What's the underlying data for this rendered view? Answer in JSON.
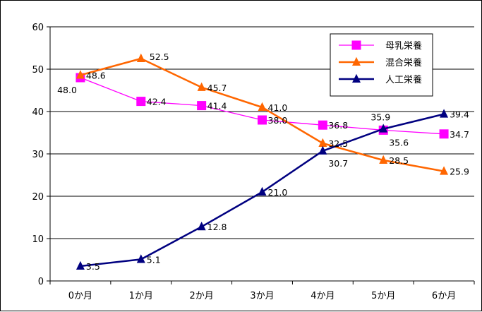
{
  "chart_data": {
    "type": "line",
    "title": "",
    "xlabel": "",
    "ylabel": "",
    "categories": [
      "0か月",
      "1か月",
      "2か月",
      "3か月",
      "4か月",
      "5か月",
      "6か月"
    ],
    "ylim": [
      0,
      60
    ],
    "yticks": [
      0,
      10,
      20,
      30,
      40,
      50,
      60
    ],
    "grid": true,
    "legend_position": "top-right",
    "series": [
      {
        "name": "母乳栄養",
        "color": "#ff00ff",
        "marker": "square",
        "values": [
          48.0,
          42.4,
          41.4,
          38.0,
          36.8,
          35.6,
          34.7
        ],
        "labels": [
          "48.0",
          "42.4",
          "41.4",
          "38.0",
          "36.8",
          "35.6",
          "34.7"
        ]
      },
      {
        "name": "混合栄養",
        "color": "#ff6600",
        "marker": "triangle",
        "values": [
          48.6,
          52.5,
          45.7,
          41.0,
          32.5,
          28.5,
          25.9
        ],
        "labels": [
          "48.6",
          "52.5",
          "45.7",
          "41.0",
          "32.5",
          "28.5",
          "25.9"
        ]
      },
      {
        "name": "人工栄養",
        "color": "#000080",
        "marker": "triangle",
        "values": [
          3.5,
          5.1,
          12.8,
          21.0,
          30.7,
          35.9,
          39.4
        ],
        "labels": [
          "3.5",
          "5.1",
          "12.8",
          "21.0",
          "30.7",
          "35.9",
          "39.4"
        ]
      }
    ]
  }
}
